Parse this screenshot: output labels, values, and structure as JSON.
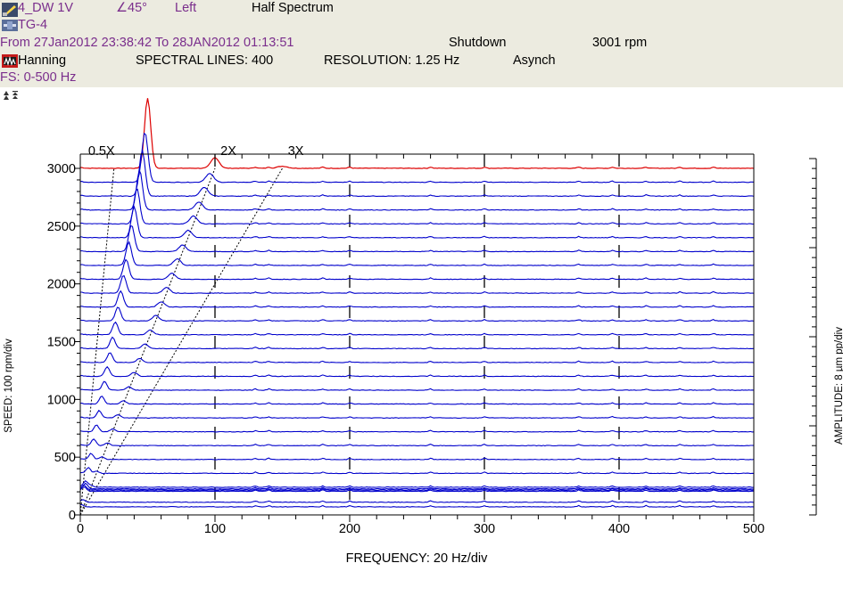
{
  "header": {
    "point_name": "4_DW 1V",
    "angle": "∠45°",
    "side": "Left",
    "spectrum_type": "Half Spectrum",
    "machine": "TG-4",
    "date_range": "From 27Jan2012 23:38:42 To 28JAN2012 01:13:51",
    "state": "Shutdown",
    "speed": "3001 rpm",
    "window": "Hanning",
    "spectral_lines": "SPECTRAL LINES: 400",
    "resolution": "RESOLUTION: 1.25 Hz",
    "sampling": "Asynch",
    "full_scale": "FS: 0-500 Hz",
    "colors": {
      "header_bg": "#ecebe0",
      "purple_text": "#7a2e8c",
      "trace": "#0000cc",
      "top_trace": "#dd0000"
    },
    "icons": [
      "probe-icon",
      "machine-icon",
      "window-icon",
      "scale-arrows-icon"
    ]
  },
  "chart_data": {
    "type": "line",
    "subtype": "waterfall",
    "xlabel": "FREQUENCY: 20 Hz/div",
    "ylabel": "SPEED: 100 rpm/div",
    "amplitude_label": "AMPLITUDE: 8 µm pp/div",
    "x_ticks": [
      "0",
      "100",
      "200",
      "300",
      "400",
      "500"
    ],
    "y_ticks": [
      "0",
      "500",
      "1000",
      "1500",
      "2000",
      "2500",
      "3000"
    ],
    "xlim": [
      0,
      500
    ],
    "ylim": [
      0,
      3000
    ],
    "order_lines": [
      {
        "label": "0.5X",
        "order": 0.5
      },
      {
        "label": "2X",
        "order": 2
      },
      {
        "label": "3X",
        "order": 3
      }
    ],
    "series": [
      {
        "color": "red",
        "speed_rpm": 3001,
        "peaks": [
          {
            "freq_hz": 50,
            "amplitude": 10.5
          },
          {
            "freq_hz": 100,
            "amplitude": 1.6
          },
          {
            "freq_hz": 150,
            "amplitude": 0.3
          }
        ]
      },
      {
        "speed_rpm": 2880,
        "peaks": [
          {
            "freq_hz": 48,
            "amplitude": 7.5
          },
          {
            "freq_hz": 96,
            "amplitude": 1.3
          }
        ]
      },
      {
        "speed_rpm": 2760,
        "peaks": [
          {
            "freq_hz": 46,
            "amplitude": 6.8
          },
          {
            "freq_hz": 92,
            "amplitude": 1.3
          }
        ]
      },
      {
        "speed_rpm": 2640,
        "peaks": [
          {
            "freq_hz": 44,
            "amplitude": 6.0
          },
          {
            "freq_hz": 88,
            "amplitude": 1.2
          }
        ]
      },
      {
        "speed_rpm": 2520,
        "peaks": [
          {
            "freq_hz": 42,
            "amplitude": 5.3
          },
          {
            "freq_hz": 84,
            "amplitude": 1.2
          }
        ]
      },
      {
        "speed_rpm": 2400,
        "peaks": [
          {
            "freq_hz": 40,
            "amplitude": 4.6
          },
          {
            "freq_hz": 80,
            "amplitude": 1.1
          }
        ]
      },
      {
        "speed_rpm": 2280,
        "peaks": [
          {
            "freq_hz": 38,
            "amplitude": 4.0
          },
          {
            "freq_hz": 76,
            "amplitude": 1.0
          }
        ]
      },
      {
        "speed_rpm": 2160,
        "peaks": [
          {
            "freq_hz": 36,
            "amplitude": 3.5
          },
          {
            "freq_hz": 72,
            "amplitude": 1.0
          }
        ]
      },
      {
        "speed_rpm": 2040,
        "peaks": [
          {
            "freq_hz": 34,
            "amplitude": 3.0
          },
          {
            "freq_hz": 68,
            "amplitude": 0.9
          }
        ]
      },
      {
        "speed_rpm": 1920,
        "peaks": [
          {
            "freq_hz": 32,
            "amplitude": 2.7
          },
          {
            "freq_hz": 64,
            "amplitude": 0.9
          }
        ]
      },
      {
        "speed_rpm": 1800,
        "peaks": [
          {
            "freq_hz": 30,
            "amplitude": 2.4
          },
          {
            "freq_hz": 60,
            "amplitude": 0.8
          }
        ]
      },
      {
        "speed_rpm": 1680,
        "peaks": [
          {
            "freq_hz": 28,
            "amplitude": 2.1
          },
          {
            "freq_hz": 56,
            "amplitude": 0.8
          }
        ]
      },
      {
        "speed_rpm": 1560,
        "peaks": [
          {
            "freq_hz": 26,
            "amplitude": 1.9
          },
          {
            "freq_hz": 52,
            "amplitude": 0.7
          }
        ]
      },
      {
        "speed_rpm": 1440,
        "peaks": [
          {
            "freq_hz": 24,
            "amplitude": 1.7
          },
          {
            "freq_hz": 48,
            "amplitude": 0.7
          }
        ]
      },
      {
        "speed_rpm": 1320,
        "peaks": [
          {
            "freq_hz": 22,
            "amplitude": 1.5
          },
          {
            "freq_hz": 44,
            "amplitude": 0.6
          }
        ]
      },
      {
        "speed_rpm": 1200,
        "peaks": [
          {
            "freq_hz": 20,
            "amplitude": 1.4
          },
          {
            "freq_hz": 40,
            "amplitude": 0.6
          }
        ]
      },
      {
        "speed_rpm": 1080,
        "peaks": [
          {
            "freq_hz": 18,
            "amplitude": 1.3
          },
          {
            "freq_hz": 36,
            "amplitude": 0.5
          }
        ]
      },
      {
        "speed_rpm": 960,
        "peaks": [
          {
            "freq_hz": 16,
            "amplitude": 1.2
          },
          {
            "freq_hz": 32,
            "amplitude": 0.5
          }
        ]
      },
      {
        "speed_rpm": 840,
        "peaks": [
          {
            "freq_hz": 14,
            "amplitude": 1.1
          },
          {
            "freq_hz": 28,
            "amplitude": 0.5
          }
        ]
      },
      {
        "speed_rpm": 720,
        "peaks": [
          {
            "freq_hz": 12,
            "amplitude": 1.0
          },
          {
            "freq_hz": 24,
            "amplitude": 0.4
          }
        ]
      },
      {
        "speed_rpm": 600,
        "peaks": [
          {
            "freq_hz": 10,
            "amplitude": 1.0
          },
          {
            "freq_hz": 20,
            "amplitude": 0.4
          }
        ]
      },
      {
        "speed_rpm": 480,
        "peaks": [
          {
            "freq_hz": 8,
            "amplitude": 0.9
          },
          {
            "freq_hz": 16,
            "amplitude": 0.4
          }
        ]
      },
      {
        "speed_rpm": 360,
        "peaks": [
          {
            "freq_hz": 6,
            "amplitude": 0.9
          },
          {
            "freq_hz": 12,
            "amplitude": 0.3
          }
        ]
      },
      {
        "speed_rpm": 240,
        "peaks": [
          {
            "freq_hz": 4,
            "amplitude": 0.9
          },
          {
            "freq_hz": 8,
            "amplitude": 0.3
          }
        ]
      },
      {
        "speed_rpm": 225,
        "peaks": [
          {
            "freq_hz": 4,
            "amplitude": 0.8
          }
        ]
      },
      {
        "speed_rpm": 215,
        "peaks": [
          {
            "freq_hz": 3,
            "amplitude": 0.7
          }
        ]
      },
      {
        "speed_rpm": 205,
        "peaks": [
          {
            "freq_hz": 3,
            "amplitude": 0.6
          }
        ]
      },
      {
        "speed_rpm": 110,
        "peaks": [
          {
            "freq_hz": 2,
            "amplitude": 0.3
          }
        ]
      },
      {
        "speed_rpm": 70,
        "peaks": [
          {
            "freq_hz": 1,
            "amplitude": 0.2
          }
        ]
      }
    ]
  }
}
